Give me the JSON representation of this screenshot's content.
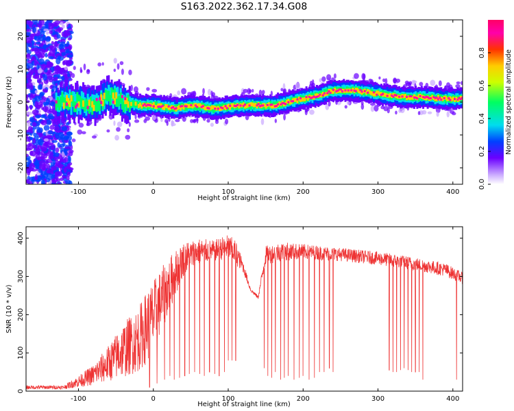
{
  "title": "S163.2022.362.17.34.G08",
  "chart_data": [
    {
      "type": "heatmap",
      "xlabel": "Height of straight line (km)",
      "ylabel": "Frequency (Hz)",
      "xlim": [
        -170,
        413
      ],
      "ylim": [
        -25,
        25
      ],
      "x_ticks": [
        "-100",
        "0",
        "100",
        "200",
        "300",
        "400"
      ],
      "y_ticks": [
        "20",
        "10",
        "0",
        "-10",
        "-20"
      ],
      "colorbar": {
        "label": "Normalized spectral amplitude",
        "ticks": [
          "0.0",
          "0.2",
          "0.4",
          "0.6",
          "0.8"
        ],
        "range": [
          0,
          1
        ]
      },
      "ridge": {
        "description_x": [
          -130,
          -100,
          -80,
          -60,
          -50,
          -40,
          -20,
          0,
          30,
          50,
          80,
          120,
          160,
          200,
          220,
          240,
          270,
          300,
          330,
          360,
          390,
          413
        ],
        "frequency_hz": [
          0,
          0,
          -1,
          2,
          1,
          0,
          -1,
          -1,
          -2,
          -1,
          -2,
          -1,
          -1,
          1,
          2,
          3.5,
          3.5,
          2.5,
          1.5,
          1.5,
          1,
          1
        ]
      },
      "grid": false
    },
    {
      "type": "line",
      "xlabel": "Height of straight line (km)",
      "ylabel": "SNR (10 * v/v)",
      "xlim": [
        -170,
        413
      ],
      "ylim": [
        0,
        430
      ],
      "x_ticks": [
        "-100",
        "0",
        "100",
        "200",
        "300",
        "400"
      ],
      "y_ticks": [
        "0",
        "100",
        "200",
        "300",
        "400"
      ],
      "series_color": "#ee3333",
      "envelope": {
        "x": [
          -170,
          -120,
          -100,
          -80,
          -60,
          -40,
          -20,
          -10,
          0,
          10,
          20,
          40,
          60,
          80,
          100,
          110,
          120,
          130,
          140,
          150,
          170,
          200,
          250,
          300,
          350,
          390,
          413
        ],
        "upper": [
          15,
          15,
          40,
          70,
          120,
          180,
          220,
          260,
          290,
          320,
          350,
          390,
          400,
          395,
          410,
          395,
          340,
          270,
          250,
          380,
          390,
          385,
          375,
          365,
          350,
          335,
          310
        ],
        "lower": [
          5,
          5,
          10,
          15,
          25,
          35,
          50,
          70,
          100,
          150,
          200,
          300,
          330,
          340,
          345,
          330,
          310,
          260,
          240,
          330,
          340,
          345,
          340,
          330,
          315,
          300,
          280
        ]
      },
      "dropouts": {
        "x": [
          -5,
          5,
          15,
          22,
          28,
          35,
          42,
          48,
          55,
          62,
          68,
          75,
          82,
          88,
          95,
          100,
          105,
          110,
          148,
          153,
          158,
          163,
          170,
          175,
          180,
          188,
          195,
          200,
          208,
          215,
          222,
          228,
          235,
          240,
          315,
          320,
          325,
          330,
          335,
          340,
          345,
          350,
          355,
          360,
          405
        ],
        "min": [
          10,
          20,
          30,
          40,
          30,
          35,
          40,
          45,
          50,
          45,
          40,
          50,
          45,
          40,
          50,
          80,
          80,
          80,
          60,
          40,
          35,
          50,
          30,
          35,
          40,
          30,
          35,
          40,
          30,
          35,
          50,
          50,
          60,
          50,
          55,
          50,
          50,
          55,
          60,
          55,
          50,
          50,
          50,
          30,
          30
        ]
      },
      "grid": false
    }
  ]
}
